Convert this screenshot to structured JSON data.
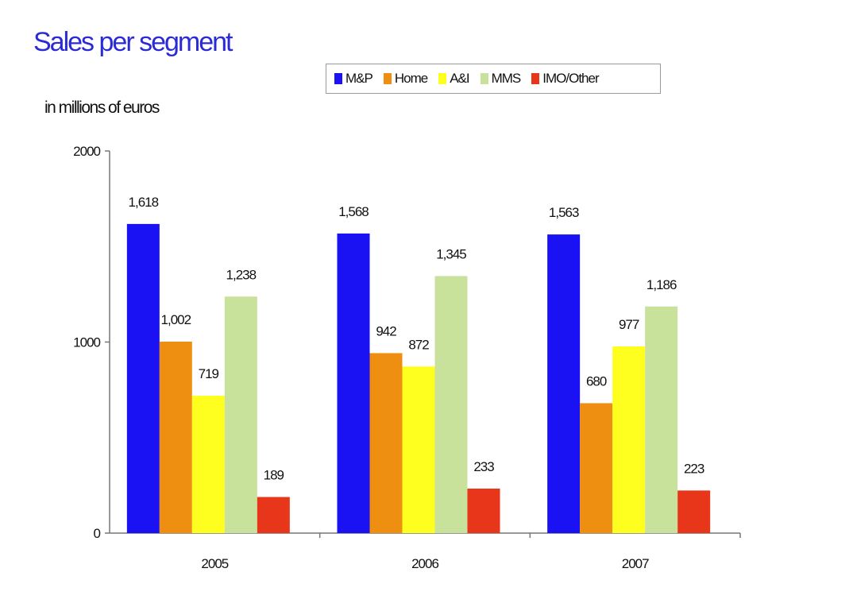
{
  "chart_data": {
    "type": "bar",
    "title": "Sales per segment",
    "ylabel": "in millions of euros",
    "categories": [
      "2005",
      "2006",
      "2007"
    ],
    "series": [
      {
        "name": "M&P",
        "color": "#1a12f2",
        "values": [
          1618,
          1568,
          1563
        ],
        "labels": [
          "1,618",
          "1,568",
          "1,563"
        ]
      },
      {
        "name": "Home",
        "color": "#ef8f12",
        "values": [
          1002,
          942,
          680
        ],
        "labels": [
          "1,002",
          "942",
          "680"
        ]
      },
      {
        "name": "A&I",
        "color": "#ffff1f",
        "values": [
          719,
          872,
          977
        ],
        "labels": [
          "719",
          "872",
          "977"
        ]
      },
      {
        "name": "MMS",
        "color": "#c8e29c",
        "values": [
          1238,
          1345,
          1186
        ],
        "labels": [
          "1,238",
          "1,345",
          "1,186"
        ]
      },
      {
        "name": "IMO/Other",
        "color": "#e8361a",
        "values": [
          189,
          233,
          223
        ],
        "labels": [
          "189",
          "233",
          "223"
        ]
      }
    ],
    "ylim": [
      0,
      2000
    ],
    "yticks": [
      "0",
      "1000",
      "2000"
    ],
    "grid": false,
    "legend_position": "top"
  }
}
